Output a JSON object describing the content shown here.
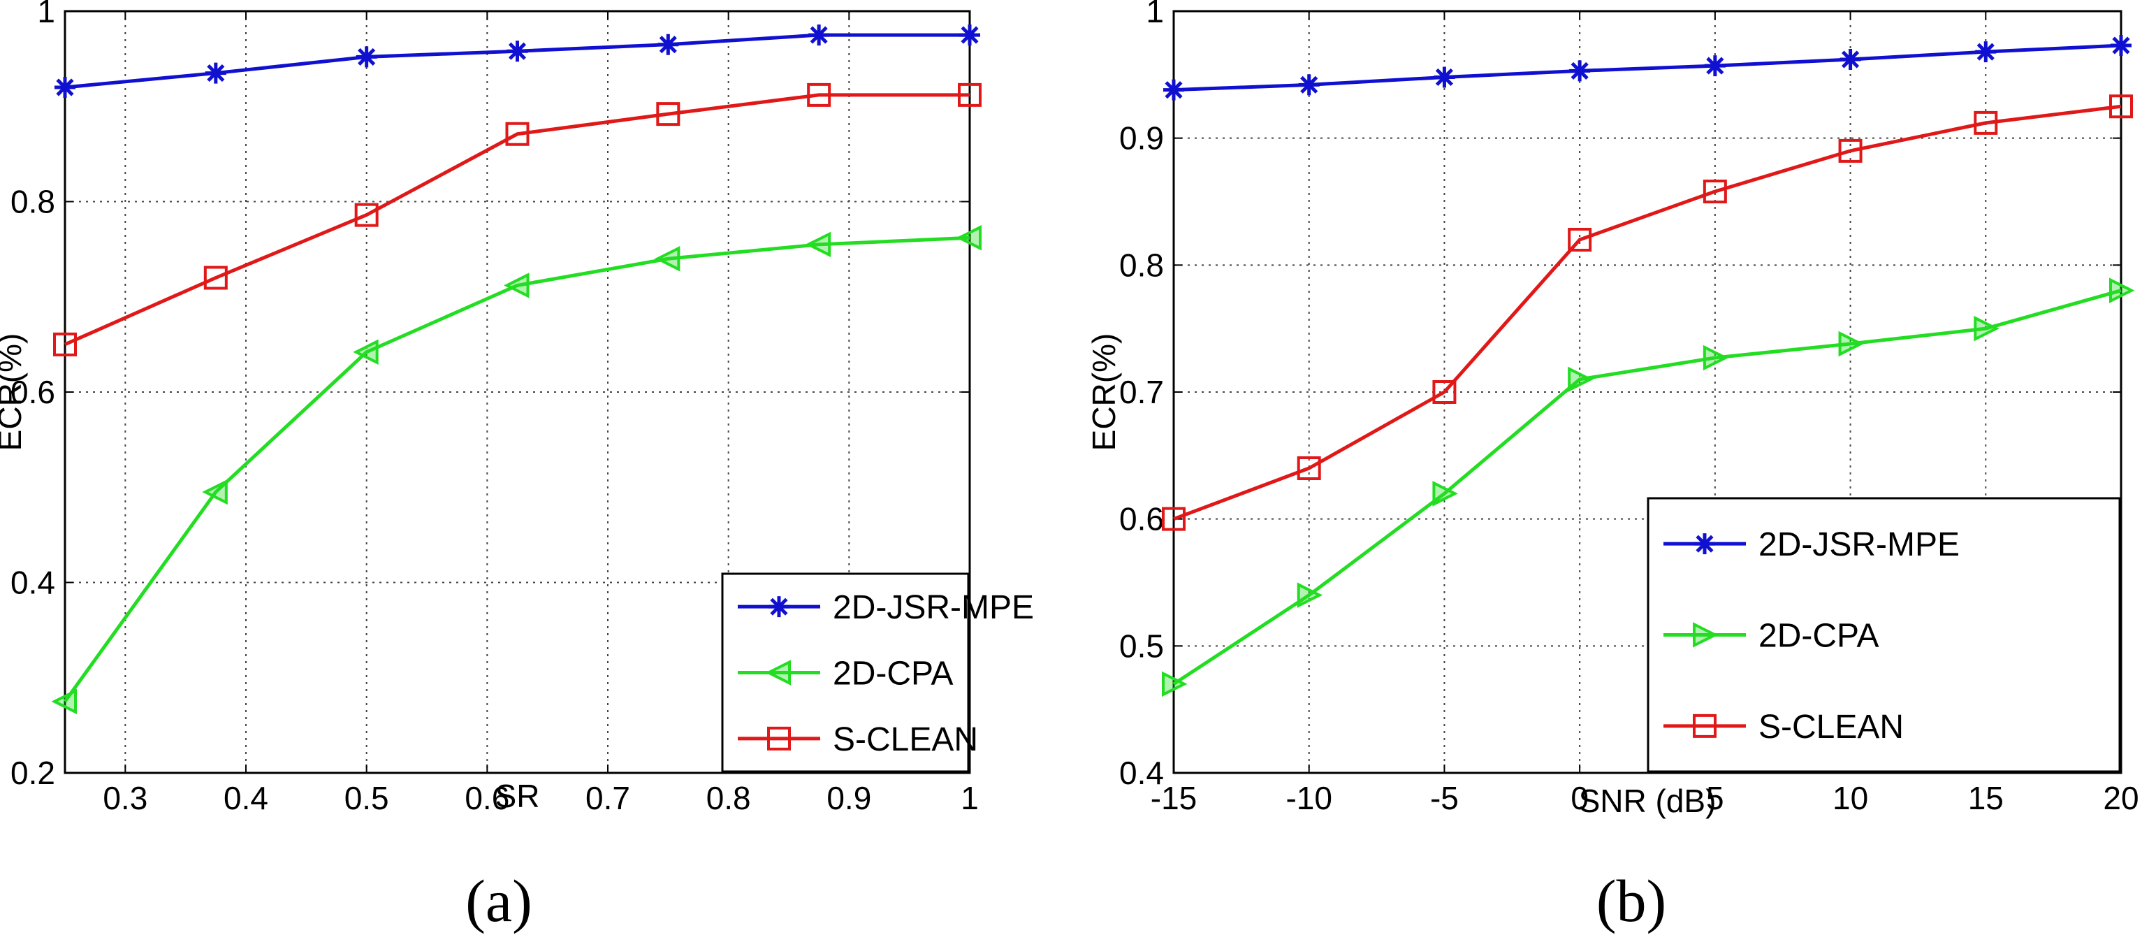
{
  "chart_data": [
    {
      "type": "line",
      "panel_label": "(a)",
      "xlabel": "SR",
      "ylabel": "ECR(%)",
      "xlim": [
        0.25,
        1
      ],
      "ylim": [
        0.2,
        1
      ],
      "x_ticks": [
        0.3,
        0.4,
        0.5,
        0.6,
        0.7,
        0.8,
        0.9,
        1
      ],
      "x_tick_labels": [
        "0.3",
        "0.4",
        "0.5",
        "0.6",
        "0.7",
        "0.8",
        "0.9",
        "1"
      ],
      "y_ticks": [
        0.2,
        0.4,
        0.6,
        0.8,
        1
      ],
      "y_tick_labels": [
        "0.2",
        "0.4",
        "0.6",
        "0.8",
        "1"
      ],
      "grid": true,
      "legend_position": "bottom-right",
      "x": [
        0.25,
        0.375,
        0.5,
        0.625,
        0.75,
        0.875,
        1.0
      ],
      "series": [
        {
          "name": "2D-JSR-MPE",
          "color": "#1010d0",
          "marker": "star",
          "values": [
            0.92,
            0.935,
            0.952,
            0.958,
            0.965,
            0.975,
            0.975
          ]
        },
        {
          "name": "2D-CPA",
          "color": "#22dd22",
          "marker": "triangle-left",
          "values": [
            0.275,
            0.495,
            0.642,
            0.712,
            0.74,
            0.755,
            0.762
          ]
        },
        {
          "name": "S-CLEAN",
          "color": "#e01818",
          "marker": "square",
          "values": [
            0.65,
            0.72,
            0.786,
            0.871,
            0.892,
            0.912,
            0.912
          ]
        }
      ]
    },
    {
      "type": "line",
      "panel_label": "(b)",
      "xlabel": "SNR (dB)",
      "ylabel": "ECR(%)",
      "xlim": [
        -15,
        20
      ],
      "ylim": [
        0.4,
        1
      ],
      "x_ticks": [
        -15,
        -10,
        -5,
        0,
        5,
        10,
        15,
        20
      ],
      "x_tick_labels": [
        "-15",
        "-10",
        "-5",
        "0",
        "5",
        "10",
        "15",
        "20"
      ],
      "y_ticks": [
        0.4,
        0.5,
        0.6,
        0.7,
        0.8,
        0.9,
        1
      ],
      "y_tick_labels": [
        "0.4",
        "0.5",
        "0.6",
        "0.7",
        "0.8",
        "0.9",
        "1"
      ],
      "grid": true,
      "legend_position": "bottom-right",
      "x": [
        -15,
        -10,
        -5,
        0,
        5,
        10,
        15,
        20
      ],
      "series": [
        {
          "name": "2D-JSR-MPE",
          "color": "#1010d0",
          "marker": "star",
          "values": [
            0.938,
            0.942,
            0.948,
            0.953,
            0.957,
            0.962,
            0.968,
            0.973
          ]
        },
        {
          "name": "2D-CPA",
          "color": "#22dd22",
          "marker": "triangle-right",
          "values": [
            0.47,
            0.54,
            0.62,
            0.71,
            0.727,
            0.738,
            0.75,
            0.78
          ]
        },
        {
          "name": "S-CLEAN",
          "color": "#e01818",
          "marker": "square",
          "values": [
            0.6,
            0.64,
            0.7,
            0.82,
            0.858,
            0.89,
            0.912,
            0.925
          ]
        }
      ]
    }
  ]
}
